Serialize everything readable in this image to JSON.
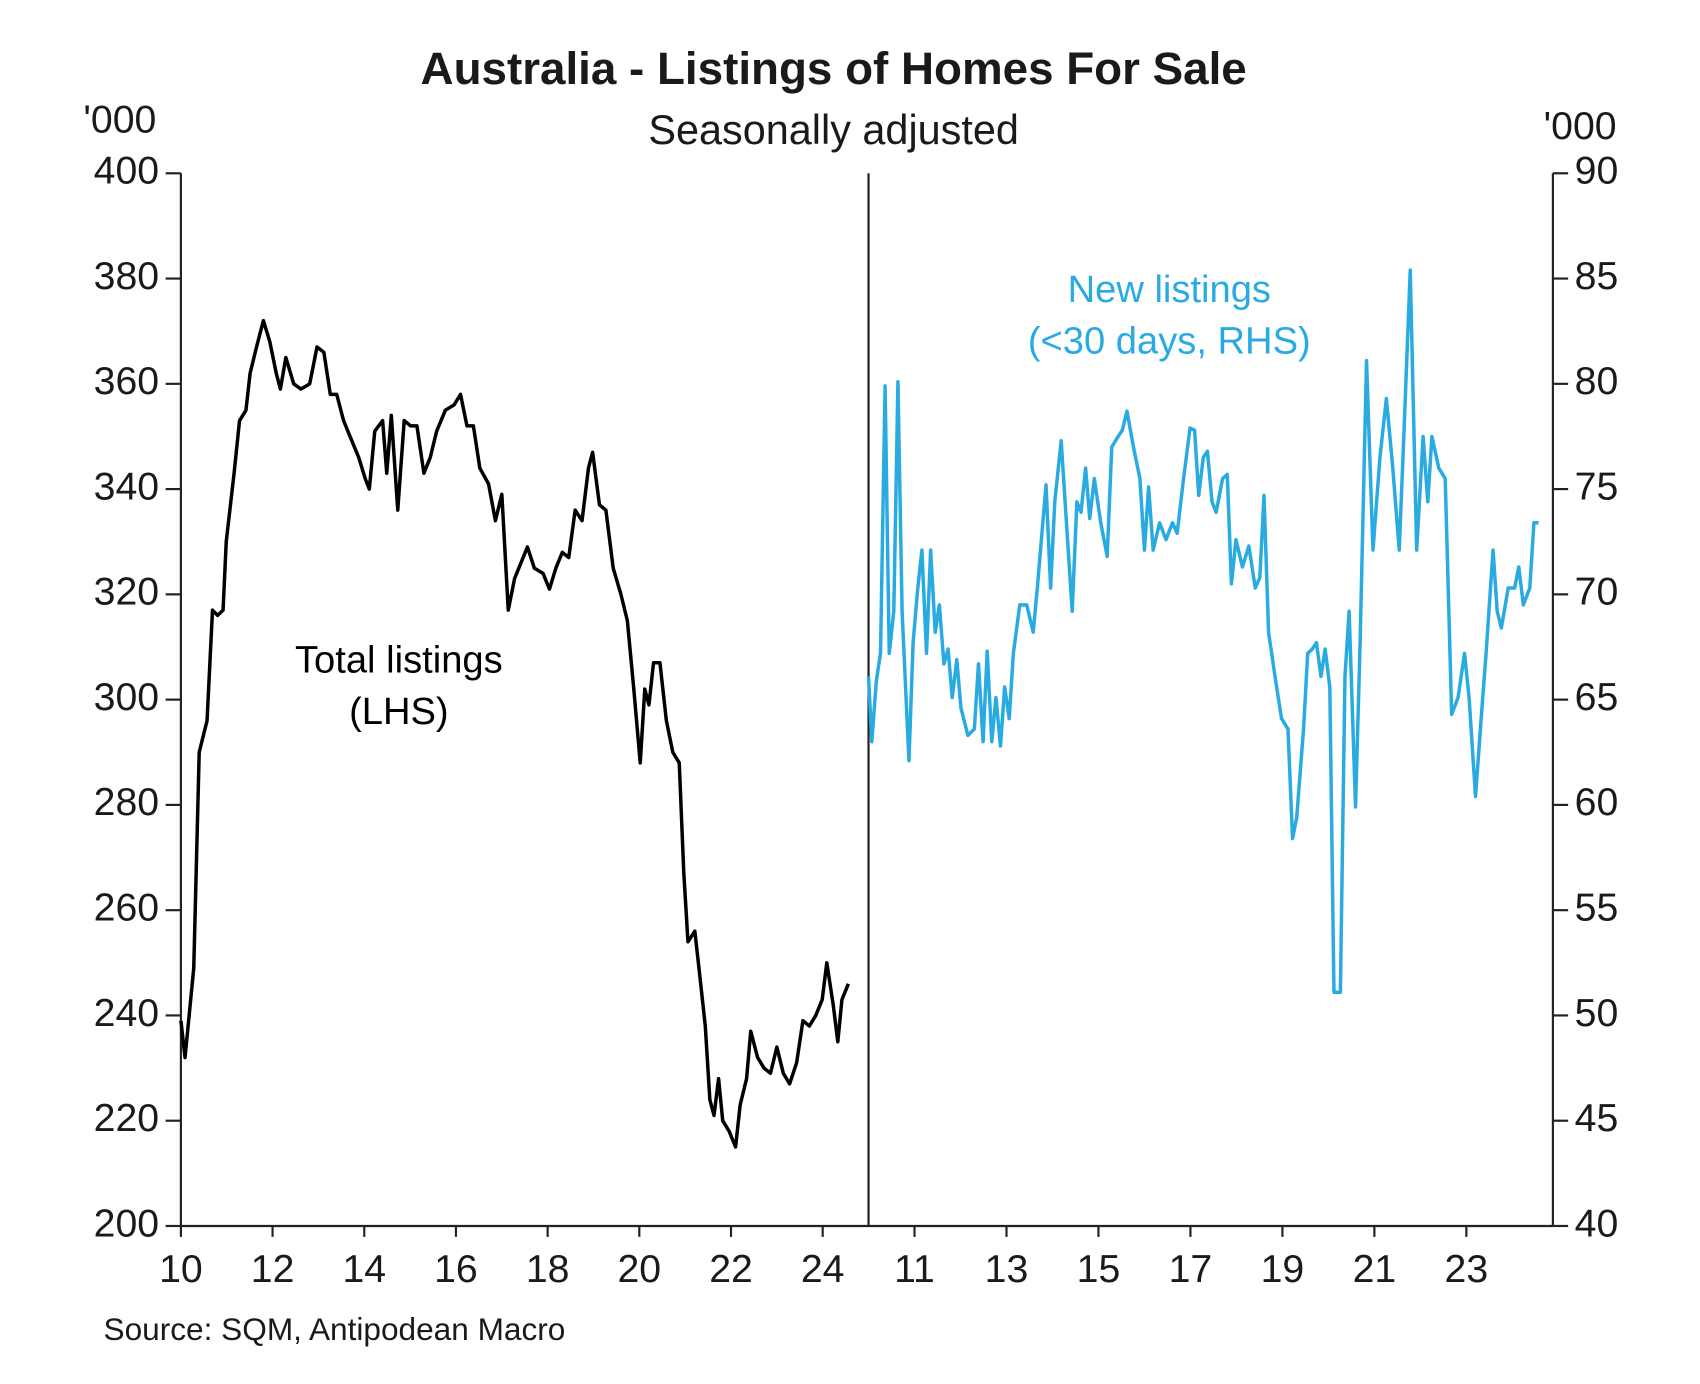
{
  "title": "Australia - Listings of Homes For Sale",
  "subtitle": "Seasonally adjusted",
  "source": "Source: SQM, Antipodean Macro",
  "chart_data": [
    {
      "type": "line",
      "ylabel": "'000",
      "annotation": [
        "Total listings",
        "(LHS)"
      ],
      "xlim": [
        10,
        25
      ],
      "xticks": [
        10,
        12,
        14,
        16,
        18,
        20,
        22,
        24
      ],
      "ylim": [
        200,
        400
      ],
      "yticks": [
        200,
        220,
        240,
        260,
        280,
        300,
        320,
        340,
        360,
        380,
        400
      ],
      "x": [
        10.0,
        10.09,
        10.28,
        10.4,
        10.57,
        10.69,
        10.8,
        10.92,
        10.99,
        11.16,
        11.28,
        11.42,
        11.51,
        11.65,
        11.8,
        11.94,
        12.08,
        12.17,
        12.29,
        12.46,
        12.62,
        12.81,
        12.97,
        13.12,
        13.26,
        13.4,
        13.55,
        13.69,
        13.88,
        14.02,
        14.11,
        14.23,
        14.4,
        14.49,
        14.59,
        14.73,
        14.87,
        15.01,
        15.15,
        15.3,
        15.44,
        15.58,
        15.77,
        15.96,
        16.1,
        16.24,
        16.38,
        16.52,
        16.71,
        16.86,
        17.0,
        17.14,
        17.28,
        17.42,
        17.56,
        17.71,
        17.9,
        18.04,
        18.18,
        18.32,
        18.46,
        18.6,
        18.75,
        18.89,
        18.98,
        19.13,
        19.27,
        19.43,
        19.6,
        19.74,
        19.88,
        20.02,
        20.12,
        20.21,
        20.31,
        20.45,
        20.59,
        20.73,
        20.87,
        20.97,
        21.06,
        21.21,
        21.3,
        21.44,
        21.54,
        21.63,
        21.73,
        21.82,
        21.96,
        22.1,
        22.2,
        22.34,
        22.43,
        22.58,
        22.72,
        22.86,
        23.0,
        23.14,
        23.28,
        23.43,
        23.57,
        23.71,
        23.85,
        23.99,
        24.09,
        24.23,
        24.33,
        24.42,
        24.56
      ],
      "series": [
        {
          "color": "#000000",
          "values": [
            239,
            232,
            249,
            290,
            296,
            317,
            316,
            317,
            330,
            343,
            353,
            355,
            362,
            367,
            372,
            368,
            362,
            359,
            365,
            360,
            359,
            360,
            367,
            366,
            358,
            358,
            353,
            350,
            346,
            342,
            340,
            351,
            353,
            343,
            354,
            336,
            353,
            352,
            352,
            343,
            346,
            351,
            355,
            356,
            358,
            352,
            352,
            344,
            341,
            334,
            339,
            317,
            323,
            326,
            329,
            325,
            324,
            321,
            325,
            328,
            327,
            336,
            334,
            344,
            347,
            337,
            336,
            325,
            320,
            315,
            302,
            288,
            302,
            299,
            307,
            307,
            296,
            290,
            288,
            267,
            254,
            256,
            249,
            238,
            224,
            221,
            228,
            220,
            218,
            215,
            223,
            228,
            237,
            232,
            230,
            229,
            234,
            229,
            227,
            231,
            239,
            238,
            240,
            243,
            250,
            242,
            235,
            243,
            246
          ]
        }
      ]
    },
    {
      "type": "line",
      "y2label": "'000",
      "annotation": [
        "New listings",
        "(<30 days, RHS)"
      ],
      "xlim": [
        10,
        25
      ],
      "xticks": [
        11,
        13,
        15,
        17,
        19,
        21,
        23
      ],
      "y2lim": [
        40,
        90
      ],
      "y2ticks": [
        40,
        45,
        50,
        55,
        60,
        65,
        70,
        75,
        80,
        85,
        90
      ],
      "x": [
        10.0,
        10.07,
        10.17,
        10.26,
        10.36,
        10.45,
        10.55,
        10.64,
        10.73,
        10.88,
        10.97,
        11.07,
        11.16,
        11.26,
        11.35,
        11.45,
        11.54,
        11.64,
        11.73,
        11.82,
        11.92,
        12.01,
        12.16,
        12.3,
        12.39,
        12.49,
        12.58,
        12.68,
        12.77,
        12.87,
        12.96,
        13.06,
        13.15,
        13.29,
        13.44,
        13.58,
        13.67,
        13.77,
        13.86,
        13.96,
        14.05,
        14.19,
        14.29,
        14.43,
        14.53,
        14.62,
        14.72,
        14.81,
        14.91,
        15.05,
        15.19,
        15.29,
        15.43,
        15.52,
        15.62,
        15.76,
        15.9,
        16.0,
        16.09,
        16.19,
        16.33,
        16.47,
        16.61,
        16.71,
        16.85,
        16.99,
        17.09,
        17.18,
        17.28,
        17.37,
        17.47,
        17.56,
        17.7,
        17.8,
        17.89,
        17.99,
        18.13,
        18.27,
        18.41,
        18.51,
        18.6,
        18.7,
        18.84,
        18.98,
        19.12,
        19.22,
        19.31,
        19.46,
        19.55,
        19.65,
        19.74,
        19.84,
        19.93,
        20.03,
        20.12,
        20.26,
        20.36,
        20.45,
        20.59,
        20.69,
        20.83,
        20.97,
        21.12,
        21.26,
        21.4,
        21.54,
        21.64,
        21.78,
        21.92,
        22.06,
        22.16,
        22.25,
        22.4,
        22.54,
        22.68,
        22.82,
        22.96,
        23.06,
        23.2,
        23.34,
        23.43,
        23.58,
        23.67,
        23.76,
        23.91,
        24.05,
        24.14,
        24.24,
        24.38,
        24.47,
        24.57
      ],
      "series": [
        {
          "color": "#29abe2",
          "axis": "y2",
          "values": [
            66.1,
            63.0,
            65.9,
            67.2,
            79.9,
            67.2,
            69.2,
            80.1,
            69.2,
            62.1,
            67.7,
            70.3,
            72.1,
            67.2,
            72.1,
            68.2,
            69.5,
            66.7,
            67.4,
            65.1,
            66.9,
            64.6,
            63.3,
            63.6,
            66.7,
            63.0,
            67.3,
            63.0,
            65.1,
            62.8,
            65.6,
            64.1,
            67.2,
            69.5,
            69.5,
            68.2,
            70.3,
            72.9,
            75.2,
            70.3,
            74.4,
            77.3,
            73.9,
            69.2,
            74.4,
            73.9,
            76.0,
            73.6,
            75.5,
            73.4,
            71.8,
            77.0,
            77.5,
            77.8,
            78.7,
            77.0,
            75.5,
            72.1,
            75.1,
            72.1,
            73.4,
            72.6,
            73.4,
            72.9,
            75.5,
            77.9,
            77.8,
            74.7,
            76.5,
            76.8,
            74.4,
            73.9,
            75.5,
            75.7,
            70.5,
            72.6,
            71.3,
            72.3,
            70.3,
            70.8,
            74.7,
            68.2,
            66.1,
            64.1,
            63.6,
            58.4,
            59.4,
            63.6,
            67.2,
            67.4,
            67.7,
            66.1,
            67.4,
            65.6,
            51.1,
            51.1,
            66.1,
            69.2,
            59.9,
            67.7,
            81.1,
            72.1,
            76.5,
            79.3,
            76.0,
            72.1,
            77.5,
            85.4,
            72.1,
            77.5,
            74.4,
            77.5,
            76.0,
            75.5,
            64.3,
            65.1,
            67.2,
            65.1,
            60.4,
            64.6,
            67.2,
            72.1,
            69.2,
            68.4,
            70.3,
            70.3,
            71.3,
            69.5,
            70.3,
            73.4,
            73.4
          ]
        }
      ]
    }
  ]
}
